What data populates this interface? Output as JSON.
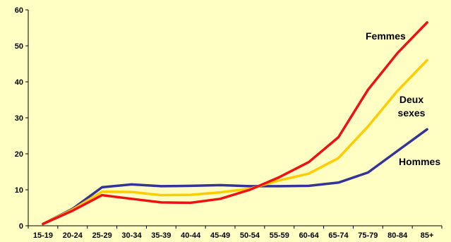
{
  "chart_data": {
    "type": "line",
    "title": "",
    "xlabel": "",
    "ylabel": "",
    "categories": [
      "15-19",
      "20-24",
      "25-29",
      "30-34",
      "35-39",
      "40-44",
      "45-49",
      "50-54",
      "55-59",
      "60-64",
      "65-74",
      "75-79",
      "80-84",
      "85+"
    ],
    "ylim": [
      0,
      60
    ],
    "yticks": [
      0,
      10,
      20,
      30,
      40,
      50,
      60
    ],
    "grid": false,
    "legend": "none",
    "series": [
      {
        "name": "Femmes",
        "color": "#ee1111",
        "values": [
          0.5,
          4.2,
          8.5,
          7.5,
          6.5,
          6.4,
          7.5,
          10.0,
          13.5,
          17.7,
          24.6,
          37.8,
          48.0,
          56.5
        ]
      },
      {
        "name": "Deux sexes",
        "label_lines": [
          "Deux",
          "sexes"
        ],
        "color": "#ffcc00",
        "values": [
          0.5,
          4.5,
          9.5,
          9.4,
          8.5,
          8.6,
          9.3,
          10.3,
          12.6,
          14.5,
          18.8,
          27.6,
          37.5,
          46.0
        ]
      },
      {
        "name": "Hommes",
        "color": "#333399",
        "values": [
          0.5,
          4.7,
          10.7,
          11.5,
          11.0,
          11.1,
          11.3,
          11.0,
          11.0,
          11.1,
          12.0,
          14.8,
          20.8,
          26.8
        ]
      }
    ]
  }
}
